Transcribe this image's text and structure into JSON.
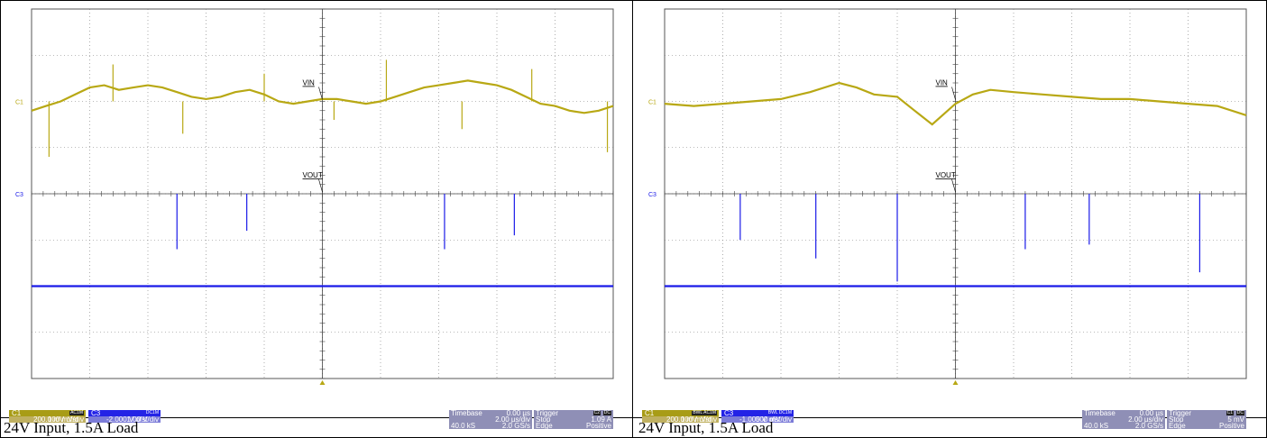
{
  "panels": [
    {
      "caption": "24V Input, 1.5A Load",
      "chart_data": {
        "type": "line",
        "title": "",
        "grid": {
          "divisions_x": 10,
          "divisions_y": 8
        },
        "xlabel": "",
        "ylabel": "",
        "series": [
          {
            "name": "VIN",
            "channel": "C1",
            "color": "#b8a814",
            "x_div": [
              0,
              0.25,
              0.5,
              0.75,
              1.0,
              1.25,
              1.5,
              1.75,
              2.0,
              2.25,
              2.5,
              2.75,
              3.0,
              3.25,
              3.5,
              3.75,
              4.0,
              4.25,
              4.5,
              4.75,
              5.0,
              5.25,
              5.5,
              5.75,
              6.0,
              6.25,
              6.5,
              6.75,
              7.0,
              7.25,
              7.5,
              7.75,
              8.0,
              8.25,
              8.5,
              8.75,
              9.0,
              9.25,
              9.5,
              9.75,
              10.0
            ],
            "y_div": [
              -0.2,
              -0.1,
              0,
              0.15,
              0.3,
              0.35,
              0.25,
              0.3,
              0.35,
              0.3,
              0.2,
              0.1,
              0.05,
              0.1,
              0.2,
              0.25,
              0.15,
              0,
              -0.05,
              0,
              0.05,
              0.05,
              0,
              -0.05,
              0,
              0.1,
              0.2,
              0.3,
              0.35,
              0.4,
              0.45,
              0.4,
              0.35,
              0.25,
              0.1,
              -0.05,
              -0.1,
              -0.2,
              -0.25,
              -0.2,
              -0.1
            ],
            "spikes": [
              {
                "x_div": 0.3,
                "y_div": -1.2
              },
              {
                "x_div": 1.4,
                "y_div": 0.8
              },
              {
                "x_div": 2.6,
                "y_div": -0.7
              },
              {
                "x_div": 4.0,
                "y_div": 0.6
              },
              {
                "x_div": 5.2,
                "y_div": -0.4
              },
              {
                "x_div": 6.1,
                "y_div": 0.9
              },
              {
                "x_div": 7.4,
                "y_div": -0.6
              },
              {
                "x_div": 8.6,
                "y_div": 0.7
              },
              {
                "x_div": 9.9,
                "y_div": -1.1
              }
            ]
          },
          {
            "name": "VOUT",
            "channel": "C3",
            "color": "#1a1ae8",
            "x_div": [
              0,
              1,
              2,
              3,
              4,
              5,
              6,
              7,
              8,
              9,
              10
            ],
            "y_div": [
              -2.0,
              -2.0,
              -2.0,
              -2.0,
              -2.0,
              -2.0,
              -2.0,
              -2.0,
              -2.0,
              -2.0,
              -2.0
            ],
            "spikes": [
              {
                "x_div": 2.5,
                "y_div": -1.2
              },
              {
                "x_div": 3.7,
                "y_div": -0.8
              },
              {
                "x_div": 7.1,
                "y_div": -1.2
              },
              {
                "x_div": 8.3,
                "y_div": -0.9
              }
            ]
          }
        ]
      },
      "ch1": {
        "label": "C1",
        "mode": "AC1M",
        "scale": "100 mV/div",
        "offset": "200.0 mV ofst"
      },
      "ch3": {
        "label": "C3",
        "mode": "DC1M",
        "scale": "1.00 V/div",
        "offset": "-2.000 V ofst"
      },
      "timebase": {
        "label": "Timebase",
        "delay": "0.00 µs",
        "per_div": "2.00 µs/div",
        "samples": "40.0 kS",
        "rate": "2.0 GS/s"
      },
      "trigger": {
        "label": "Trigger",
        "source": "C2",
        "coupling": "DC",
        "mode": "Stop",
        "type": "Edge",
        "level": "1.09 A",
        "slope": "Positive"
      }
    },
    {
      "caption": "24V Input, 1.5A Load",
      "chart_data": {
        "type": "line",
        "title": "",
        "grid": {
          "divisions_x": 10,
          "divisions_y": 8
        },
        "xlabel": "",
        "ylabel": "",
        "series": [
          {
            "name": "VIN",
            "channel": "C1",
            "color": "#b8a814",
            "x_div": [
              0,
              0.5,
              1.0,
              1.5,
              2.0,
              2.5,
              3.0,
              3.3,
              3.6,
              4.0,
              4.3,
              4.6,
              5.0,
              5.3,
              5.6,
              6.0,
              6.5,
              7.0,
              7.5,
              8.0,
              8.5,
              9.0,
              9.5,
              10.0
            ],
            "y_div": [
              -0.05,
              -0.1,
              -0.05,
              0,
              0.05,
              0.2,
              0.4,
              0.3,
              0.15,
              0.1,
              -0.2,
              -0.5,
              -0.05,
              0.15,
              0.25,
              0.2,
              0.15,
              0.1,
              0.05,
              0.05,
              0.0,
              -0.05,
              -0.1,
              -0.3
            ],
            "spikes": []
          },
          {
            "name": "VOUT",
            "channel": "C3",
            "color": "#1a1ae8",
            "x_div": [
              0,
              1,
              2,
              3,
              4,
              5,
              6,
              7,
              8,
              9,
              10
            ],
            "y_div": [
              -2.0,
              -2.0,
              -2.0,
              -2.0,
              -2.0,
              -2.0,
              -2.0,
              -2.0,
              -2.0,
              -2.0,
              -2.0
            ],
            "spikes": [
              {
                "x_div": 1.3,
                "y_div": -1.0
              },
              {
                "x_div": 2.6,
                "y_div": -1.4
              },
              {
                "x_div": 4.0,
                "y_div": -1.9
              },
              {
                "x_div": 6.2,
                "y_div": -1.2
              },
              {
                "x_div": 7.3,
                "y_div": -1.1
              },
              {
                "x_div": 9.2,
                "y_div": -1.7
              }
            ]
          }
        ]
      },
      "ch1": {
        "label": "C1",
        "mode": "BWL AC1M",
        "scale": "100 mV/div",
        "offset": "200.0 mV ofst"
      },
      "ch3": {
        "label": "C3",
        "mode": "BWL DC1M",
        "scale": "500 mV/div",
        "offset": "-1.000 V ofst"
      },
      "timebase": {
        "label": "Timebase",
        "delay": "0.00 µs",
        "per_div": "2.00 µs/div",
        "samples": "40.0 kS",
        "rate": "2.0 GS/s"
      },
      "trigger": {
        "label": "Trigger",
        "source": "C1",
        "coupling": "DC",
        "mode": "Stop",
        "type": "Edge",
        "level": "5 mV",
        "slope": "Positive"
      }
    }
  ]
}
